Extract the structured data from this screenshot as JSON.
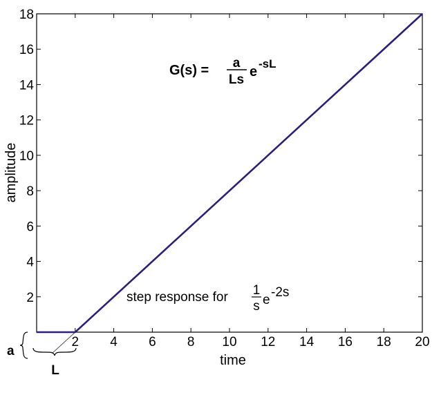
{
  "chart_data": {
    "type": "line",
    "xlabel": "time",
    "ylabel": "amplitude",
    "xlim": [
      0,
      20
    ],
    "ylim": [
      0,
      18
    ],
    "x_ticks": [
      2,
      4,
      6,
      8,
      10,
      12,
      14,
      16,
      18,
      20
    ],
    "y_ticks": [
      2,
      4,
      6,
      8,
      10,
      12,
      14,
      16,
      18
    ],
    "grid": false,
    "series": [
      {
        "color": "#2a1f7a",
        "x": [
          0,
          2,
          20
        ],
        "y": [
          0,
          0,
          18
        ]
      }
    ],
    "annotations": {
      "formula": {
        "lhs": "G(s) =",
        "num": "a",
        "den": "Ls",
        "exp_base": "e",
        "exp_power": "-sL"
      },
      "caption": {
        "prefix": "step response for ",
        "num": "1",
        "den": "s",
        "exp_base": "e",
        "exp_power": "-2s"
      },
      "a_marker": "a",
      "L_marker": "L"
    }
  }
}
